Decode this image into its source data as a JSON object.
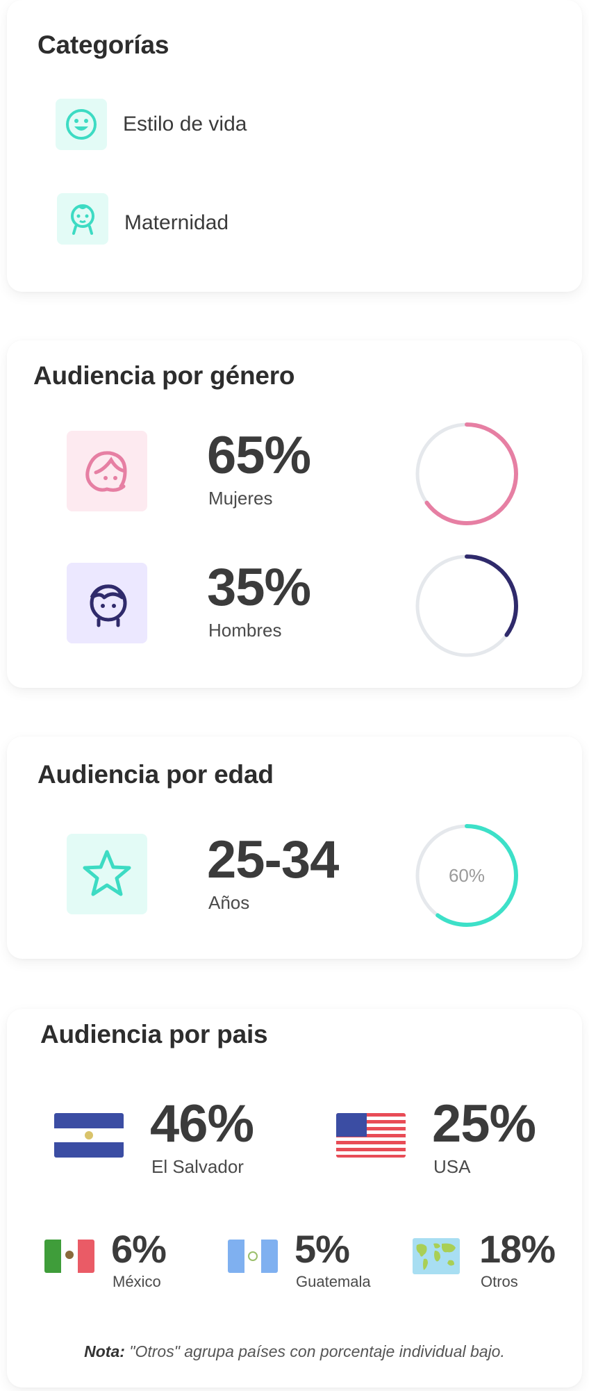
{
  "categories": {
    "title": "Categorías",
    "items": [
      {
        "label": "Estilo de vida",
        "icon": "smile-icon"
      },
      {
        "label": "Maternidad",
        "icon": "baby-icon"
      }
    ]
  },
  "gender": {
    "title": "Audiencia por género",
    "women": {
      "value": "65%",
      "label": "Mujeres",
      "percent": 65,
      "color": "#e67fa3",
      "icon": "woman-icon"
    },
    "men": {
      "value": "35%",
      "label": "Hombres",
      "percent": 35,
      "color": "#2f2a6b",
      "icon": "man-icon"
    }
  },
  "age": {
    "title": "Audiencia por edad",
    "value": "25-34",
    "label": "Años",
    "percent_text": "60%",
    "percent": 60,
    "color": "#3de0c8",
    "icon": "star-icon"
  },
  "country": {
    "title": "Audiencia por pais",
    "items": [
      {
        "value": "46%",
        "label": "El Salvador",
        "icon": "el-salvador-flag-icon"
      },
      {
        "value": "25%",
        "label": "USA",
        "icon": "usa-flag-icon"
      },
      {
        "value": "6%",
        "label": "México",
        "icon": "mexico-flag-icon"
      },
      {
        "value": "5%",
        "label": "Guatemala",
        "icon": "guatemala-flag-icon"
      },
      {
        "value": "18%",
        "label": "Otros",
        "icon": "world-map-icon"
      }
    ],
    "note_bold": "Nota:",
    "note_text": " \"Otros\" agrupa países con porcentaje individual bajo."
  }
}
